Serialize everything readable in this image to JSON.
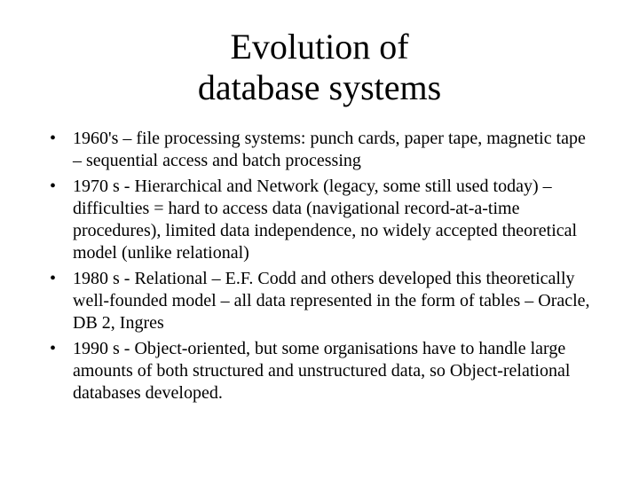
{
  "title_line1": "Evolution of",
  "title_line2": "database systems",
  "bullets": {
    "b0": "1960's – file processing systems: punch cards, paper tape, magnetic tape – sequential access and batch processing",
    "b1": "1970 s - Hierarchical and Network (legacy, some still used today) – difficulties = hard to access data (navigational record-at-a-time procedures), limited data independence, no widely accepted theoretical model (unlike relational)",
    "b2": "1980 s - Relational – E.F. Codd and others developed this theoretically well-founded model – all data represented in the form of tables – Oracle, DB 2, Ingres",
    "b3": "1990 s - Object-oriented, but some organisations have to handle large amounts of both structured and unstructured data, so Object-relational databases developed."
  },
  "colors": {
    "background": "#ffffff",
    "text": "#000000"
  },
  "typography": {
    "title_fontsize_pt": 30,
    "body_fontsize_pt": 15,
    "font_family": "Times New Roman"
  }
}
